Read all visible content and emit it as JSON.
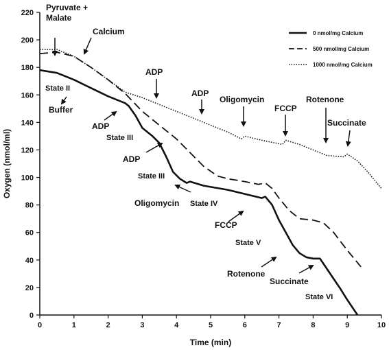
{
  "chart_data": {
    "type": "line",
    "xlabel": "Time (min)",
    "ylabel": "Oxygen (nmol/ml)",
    "xlim": [
      0,
      10
    ],
    "ylim": [
      0,
      220
    ],
    "x_ticks": [
      0,
      1,
      2,
      3,
      4,
      5,
      6,
      7,
      8,
      9,
      10
    ],
    "y_ticks": [
      0,
      20,
      40,
      60,
      80,
      100,
      120,
      140,
      160,
      180,
      200,
      220
    ],
    "grid": false,
    "legend": "top-right",
    "series": [
      {
        "name": "0 nmol/mg Calcium",
        "style": "solid",
        "points": [
          [
            0,
            178
          ],
          [
            0.5,
            176
          ],
          [
            1.0,
            171
          ],
          [
            1.5,
            165
          ],
          [
            2.0,
            159
          ],
          [
            2.5,
            154
          ],
          [
            2.6,
            152
          ],
          [
            2.8,
            145
          ],
          [
            3.0,
            136
          ],
          [
            3.3,
            130
          ],
          [
            3.5,
            125
          ],
          [
            3.7,
            115
          ],
          [
            3.9,
            104
          ],
          [
            4.1,
            99
          ],
          [
            4.3,
            96
          ],
          [
            4.4,
            97
          ],
          [
            4.8,
            94
          ],
          [
            5.5,
            91
          ],
          [
            6.0,
            88
          ],
          [
            6.5,
            85
          ],
          [
            6.6,
            86
          ],
          [
            6.8,
            80
          ],
          [
            7.0,
            69
          ],
          [
            7.2,
            60
          ],
          [
            7.4,
            51
          ],
          [
            7.6,
            45
          ],
          [
            7.8,
            42
          ],
          [
            8.0,
            41
          ],
          [
            8.2,
            41
          ],
          [
            8.5,
            30
          ],
          [
            8.8,
            19
          ],
          [
            9.0,
            11
          ],
          [
            9.3,
            0
          ]
        ]
      },
      {
        "name": "500 nmol/mg Calcium",
        "style": "dashed",
        "points": [
          [
            0,
            190
          ],
          [
            0.5,
            191
          ],
          [
            1.0,
            188
          ],
          [
            1.5,
            180
          ],
          [
            2.0,
            171
          ],
          [
            2.5,
            161
          ],
          [
            3.0,
            148
          ],
          [
            3.5,
            138
          ],
          [
            4.0,
            128
          ],
          [
            4.4,
            118
          ],
          [
            4.8,
            108
          ],
          [
            5.2,
            101
          ],
          [
            5.5,
            99
          ],
          [
            6.0,
            97
          ],
          [
            6.4,
            95
          ],
          [
            6.6,
            96
          ],
          [
            6.8,
            92
          ],
          [
            7.0,
            85
          ],
          [
            7.3,
            76
          ],
          [
            7.6,
            70
          ],
          [
            8.0,
            69
          ],
          [
            8.3,
            67
          ],
          [
            8.6,
            60
          ],
          [
            9.0,
            47
          ],
          [
            9.4,
            35
          ]
        ]
      },
      {
        "name": "1000 nmol/mg Calcium",
        "style": "dotted",
        "points": [
          [
            0,
            193
          ],
          [
            0.5,
            193
          ],
          [
            1.0,
            188
          ],
          [
            1.5,
            180
          ],
          [
            2.0,
            171
          ],
          [
            2.5,
            162
          ],
          [
            3.0,
            158
          ],
          [
            3.5,
            153
          ],
          [
            4.0,
            148
          ],
          [
            4.5,
            143
          ],
          [
            5.0,
            138
          ],
          [
            5.5,
            133
          ],
          [
            5.9,
            128
          ],
          [
            6.0,
            130
          ],
          [
            6.5,
            127
          ],
          [
            7.1,
            124
          ],
          [
            7.2,
            127
          ],
          [
            7.6,
            124
          ],
          [
            8.0,
            120
          ],
          [
            8.4,
            116
          ],
          [
            8.9,
            115
          ],
          [
            9.0,
            117
          ],
          [
            9.3,
            112
          ],
          [
            9.6,
            104
          ],
          [
            10.0,
            92
          ]
        ]
      }
    ],
    "arrow_labels": [
      "Pyruvate +",
      "Malate",
      "Calcium",
      "ADP",
      "ADP",
      "Oligomycin",
      "FCCP",
      "Rotenone",
      "Succinate",
      "Buffer",
      "ADP",
      "ADP",
      "Oligomycin",
      "FCCP",
      "Rotenone",
      "Succinate"
    ],
    "state_labels": [
      "State II",
      "State III",
      "State III",
      "State IV",
      "State V",
      "State VI"
    ]
  }
}
